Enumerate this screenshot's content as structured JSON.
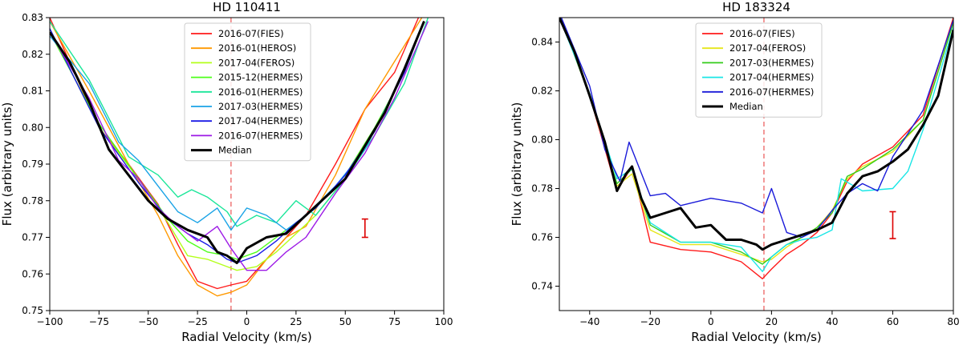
{
  "chart_data": [
    {
      "type": "line",
      "title": "HD 110411",
      "xlabel": "Radial Velocity (km/s)",
      "ylabel": "Flux (arbitrary units)",
      "xlim": [
        -100,
        100
      ],
      "ylim": [
        0.75,
        0.83
      ],
      "xticks": [
        -100,
        -75,
        -50,
        -25,
        0,
        25,
        50,
        75,
        100
      ],
      "xtick_labels": [
        "−100",
        "−75",
        "−50",
        "−25",
        "0",
        "25",
        "50",
        "75",
        "100"
      ],
      "yticks": [
        0.75,
        0.76,
        0.77,
        0.78,
        0.79,
        0.8,
        0.81,
        0.82,
        0.83
      ],
      "ytick_labels": [
        "0.75",
        "0.76",
        "0.77",
        "0.78",
        "0.79",
        "0.80",
        "0.81",
        "0.82",
        "0.83"
      ],
      "vline_x": -8,
      "vline_color": "#f08080",
      "errorbar": {
        "x": 60,
        "y": 0.7725,
        "err": 0.0025,
        "color": "#dd0000"
      },
      "legend_position": "top-center",
      "series": [
        {
          "name": "2016-07(FIES)",
          "color": "#ff1a1a",
          "x": [
            -100,
            -75,
            -60,
            -45,
            -35,
            -25,
            -15,
            -8,
            0,
            10,
            20,
            30,
            45,
            60,
            75,
            88
          ],
          "y": [
            0.83,
            0.8,
            0.79,
            0.779,
            0.768,
            0.758,
            0.756,
            0.757,
            0.758,
            0.764,
            0.77,
            0.776,
            0.79,
            0.805,
            0.815,
            0.831
          ]
        },
        {
          "name": "2016-01(HEROS)",
          "color": "#ff9900",
          "x": [
            -100,
            -80,
            -60,
            -45,
            -35,
            -25,
            -15,
            -8,
            0,
            10,
            20,
            30,
            45,
            60,
            75,
            90
          ],
          "y": [
            0.829,
            0.81,
            0.79,
            0.776,
            0.765,
            0.757,
            0.754,
            0.755,
            0.757,
            0.764,
            0.77,
            0.773,
            0.787,
            0.805,
            0.818,
            0.831
          ]
        },
        {
          "name": "2017-04(FEROS)",
          "color": "#b3ff1a",
          "x": [
            -100,
            -75,
            -55,
            -40,
            -30,
            -20,
            -10,
            -5,
            5,
            15,
            25,
            35,
            50,
            65,
            80,
            90
          ],
          "y": [
            0.827,
            0.8,
            0.786,
            0.774,
            0.765,
            0.764,
            0.762,
            0.761,
            0.762,
            0.766,
            0.771,
            0.776,
            0.786,
            0.799,
            0.815,
            0.829
          ]
        },
        {
          "name": "2015-12(HERMES)",
          "color": "#4dff1a",
          "x": [
            -100,
            -75,
            -55,
            -40,
            -30,
            -20,
            -10,
            -5,
            5,
            15,
            25,
            35,
            50,
            65,
            80,
            90
          ],
          "y": [
            0.826,
            0.801,
            0.786,
            0.775,
            0.769,
            0.766,
            0.765,
            0.764,
            0.766,
            0.77,
            0.774,
            0.778,
            0.787,
            0.8,
            0.815,
            0.829
          ]
        },
        {
          "name": "2016-01(HERMES)",
          "color": "#1ae699",
          "x": [
            -100,
            -80,
            -60,
            -45,
            -35,
            -28,
            -20,
            -10,
            -5,
            5,
            15,
            25,
            35,
            50,
            65,
            80,
            92
          ],
          "y": [
            0.829,
            0.813,
            0.792,
            0.787,
            0.781,
            0.783,
            0.781,
            0.777,
            0.773,
            0.776,
            0.774,
            0.78,
            0.776,
            0.786,
            0.798,
            0.812,
            0.83
          ]
        },
        {
          "name": "2017-03(HERMES)",
          "color": "#1aa3e6",
          "x": [
            -100,
            -80,
            -65,
            -55,
            -45,
            -35,
            -25,
            -15,
            -8,
            0,
            10,
            20,
            30,
            45,
            60,
            75,
            90
          ],
          "y": [
            0.825,
            0.812,
            0.796,
            0.791,
            0.784,
            0.777,
            0.774,
            0.778,
            0.772,
            0.778,
            0.776,
            0.772,
            0.776,
            0.784,
            0.794,
            0.81,
            0.829
          ]
        },
        {
          "name": "2017-04(HERMES)",
          "color": "#1a1ae6",
          "x": [
            -100,
            -75,
            -55,
            -40,
            -30,
            -20,
            -10,
            -5,
            5,
            15,
            25,
            35,
            50,
            65,
            80,
            90
          ],
          "y": [
            0.827,
            0.8,
            0.785,
            0.775,
            0.771,
            0.768,
            0.764,
            0.763,
            0.765,
            0.769,
            0.774,
            0.778,
            0.787,
            0.799,
            0.815,
            0.829
          ]
        },
        {
          "name": "2016-07(HERMES)",
          "color": "#9d1ae6",
          "x": [
            -100,
            -80,
            -65,
            -55,
            -45,
            -35,
            -25,
            -15,
            -8,
            0,
            10,
            20,
            30,
            45,
            60,
            75,
            92
          ],
          "y": [
            0.826,
            0.808,
            0.791,
            0.786,
            0.778,
            0.773,
            0.769,
            0.773,
            0.767,
            0.761,
            0.761,
            0.766,
            0.77,
            0.782,
            0.793,
            0.808,
            0.829
          ]
        },
        {
          "name": "Median",
          "color": "#000000",
          "bold": true,
          "x": [
            -100,
            -90,
            -80,
            -70,
            -60,
            -50,
            -40,
            -30,
            -20,
            -15,
            -10,
            -5,
            0,
            10,
            20,
            30,
            40,
            50,
            60,
            70,
            80,
            90
          ],
          "y": [
            0.826,
            0.818,
            0.807,
            0.794,
            0.787,
            0.78,
            0.775,
            0.772,
            0.77,
            0.766,
            0.765,
            0.763,
            0.767,
            0.77,
            0.771,
            0.776,
            0.781,
            0.786,
            0.795,
            0.804,
            0.816,
            0.829
          ]
        }
      ]
    },
    {
      "type": "line",
      "title": "HD 183324",
      "xlabel": "Radial Velocity (km/s)",
      "ylabel": "Flux (arbitrary units)",
      "xlim": [
        -50,
        80
      ],
      "ylim": [
        0.73,
        0.85
      ],
      "xticks": [
        -40,
        -20,
        0,
        20,
        40,
        60,
        80
      ],
      "xtick_labels": [
        "−40",
        "−20",
        "0",
        "20",
        "40",
        "60",
        "80"
      ],
      "yticks": [
        0.74,
        0.76,
        0.78,
        0.8,
        0.82,
        0.84
      ],
      "ytick_labels": [
        "0.74",
        "0.76",
        "0.78",
        "0.80",
        "0.82",
        "0.84"
      ],
      "vline_x": 17.5,
      "vline_color": "#f08080",
      "errorbar": {
        "x": 60,
        "y": 0.765,
        "err": 0.0055,
        "color": "#dd0000"
      },
      "legend_position": "top-center",
      "series": [
        {
          "name": "2016-07(FIES)",
          "color": "#ff1a1a",
          "x": [
            -50,
            -40,
            -31,
            -26,
            -20,
            -10,
            0,
            10,
            17,
            20,
            25,
            30,
            35,
            40,
            45,
            50,
            60,
            70,
            80
          ],
          "y": [
            0.852,
            0.818,
            0.779,
            0.789,
            0.758,
            0.755,
            0.754,
            0.75,
            0.743,
            0.747,
            0.753,
            0.757,
            0.762,
            0.77,
            0.783,
            0.79,
            0.797,
            0.81,
            0.85
          ]
        },
        {
          "name": "2017-04(FEROS)",
          "color": "#e6e61a",
          "x": [
            -50,
            -40,
            -31,
            -26,
            -20,
            -10,
            0,
            10,
            17,
            20,
            25,
            30,
            35,
            40,
            45,
            50,
            60,
            70,
            80
          ],
          "y": [
            0.851,
            0.818,
            0.781,
            0.786,
            0.763,
            0.757,
            0.757,
            0.753,
            0.75,
            0.751,
            0.756,
            0.76,
            0.764,
            0.771,
            0.784,
            0.789,
            0.795,
            0.808,
            0.848
          ]
        },
        {
          "name": "2017-03(HERMES)",
          "color": "#33cc1a",
          "x": [
            -50,
            -40,
            -31,
            -26,
            -20,
            -10,
            0,
            10,
            17,
            20,
            25,
            30,
            35,
            40,
            45,
            50,
            60,
            70,
            80
          ],
          "y": [
            0.851,
            0.818,
            0.782,
            0.788,
            0.765,
            0.758,
            0.758,
            0.754,
            0.749,
            0.752,
            0.757,
            0.76,
            0.764,
            0.77,
            0.785,
            0.788,
            0.796,
            0.808,
            0.848
          ]
        },
        {
          "name": "2017-04(HERMES)",
          "color": "#1ae6e6",
          "x": [
            -50,
            -40,
            -31,
            -26,
            -20,
            -10,
            0,
            10,
            17,
            20,
            25,
            30,
            35,
            40,
            43,
            50,
            60,
            65,
            70,
            80
          ],
          "y": [
            0.85,
            0.819,
            0.784,
            0.788,
            0.766,
            0.758,
            0.758,
            0.756,
            0.746,
            0.752,
            0.757,
            0.759,
            0.76,
            0.763,
            0.784,
            0.779,
            0.78,
            0.787,
            0.804,
            0.846
          ]
        },
        {
          "name": "2016-07(HERMES)",
          "color": "#1a1ad9",
          "x": [
            -50,
            -40,
            -35,
            -30,
            -27,
            -20,
            -15,
            -10,
            0,
            10,
            17,
            20,
            25,
            30,
            35,
            40,
            45,
            50,
            55,
            60,
            70,
            80
          ],
          "y": [
            0.852,
            0.822,
            0.796,
            0.783,
            0.799,
            0.777,
            0.778,
            0.773,
            0.776,
            0.774,
            0.77,
            0.78,
            0.762,
            0.76,
            0.763,
            0.771,
            0.778,
            0.782,
            0.779,
            0.793,
            0.812,
            0.849
          ]
        },
        {
          "name": "Median",
          "color": "#000000",
          "bold": true,
          "x": [
            -50,
            -45,
            -40,
            -35,
            -31,
            -28,
            -26,
            -23,
            -20,
            -15,
            -10,
            -5,
            0,
            5,
            10,
            15,
            17,
            20,
            25,
            30,
            35,
            40,
            45,
            50,
            55,
            60,
            65,
            70,
            75,
            80
          ],
          "y": [
            0.85,
            0.836,
            0.818,
            0.799,
            0.779,
            0.786,
            0.789,
            0.776,
            0.768,
            0.77,
            0.772,
            0.764,
            0.765,
            0.759,
            0.759,
            0.757,
            0.755,
            0.757,
            0.759,
            0.761,
            0.763,
            0.766,
            0.778,
            0.785,
            0.787,
            0.791,
            0.796,
            0.806,
            0.818,
            0.845
          ]
        }
      ]
    }
  ]
}
